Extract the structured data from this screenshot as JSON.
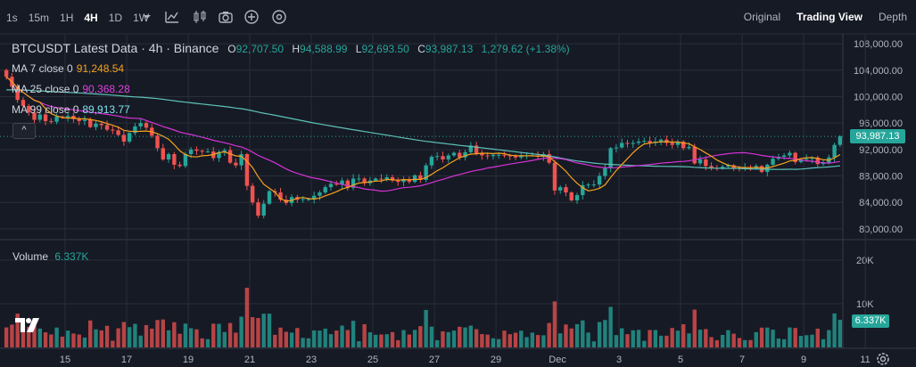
{
  "toolbar": {
    "intervals": [
      "1s",
      "15m",
      "1H",
      "4H",
      "1D",
      "1W"
    ],
    "active_interval": "4H",
    "icons": [
      "chevron-down-icon",
      "indicators-icon",
      "candle-type-icon",
      "camera-icon",
      "add-circle-icon",
      "settings-circle-icon"
    ],
    "view_tabs": [
      "Original",
      "Trading View",
      "Depth"
    ],
    "active_view": "Trading View"
  },
  "legend": {
    "title": "BTCUSDT Latest Data · 4h · Binance",
    "o_label": "O",
    "o": "92,707.50",
    "h_label": "H",
    "h": "94,588.99",
    "l_label": "L",
    "l": "92,693.50",
    "c_label": "C",
    "c": "93,987.13",
    "change": "1,279.62 (+1.38%)",
    "ma7_label": "MA 7 close 0",
    "ma7_value": "91,248.54",
    "ma7_color": "#f7a21b",
    "ma25_label": "MA 25 close 0",
    "ma25_value": "90,368.28",
    "ma25_color": "#d633d6",
    "ma99_label": "MA 99 close 0",
    "ma99_value": "89,913.77",
    "ma99_color": "#7fe3f0"
  },
  "collapse_symbol": "^",
  "last_price_tag": "93,987.13",
  "volume": {
    "label": "Volume",
    "value": "6.337K",
    "tag": "6.337K"
  },
  "colors": {
    "up": "#26a69a",
    "down": "#ef5350",
    "grid": "#2a2e39",
    "text": "#b2b5be"
  },
  "chart_data": {
    "type": "candlestick",
    "price_axis_ticks": [
      "108,000.00",
      "104,000.00",
      "100,000.00",
      "96,000.00",
      "92,000.00",
      "88,000.00",
      "84,000.00",
      "80,000.00"
    ],
    "price_axis_values": [
      108000,
      104000,
      100000,
      96000,
      92000,
      88000,
      84000,
      80000
    ],
    "ylim": [
      78500,
      109500
    ],
    "volume_axis_ticks": [
      "20K",
      "10K"
    ],
    "volume_axis_values": [
      20000,
      10000
    ],
    "volume_ylim": [
      0,
      24500
    ],
    "x_tick_labels": [
      "15",
      "17",
      "19",
      "21",
      "23",
      "25",
      "27",
      "29",
      "Dec",
      "3",
      "5",
      "7",
      "9",
      "11"
    ],
    "x_tick_index": [
      10.5,
      21.5,
      32.5,
      43.5,
      54.5,
      65.5,
      76.5,
      87.5,
      98.5,
      109.5,
      120.5,
      131.5,
      142.5,
      153.5
    ],
    "last_close": 93987.13,
    "last_volume": 6337,
    "candles_close": [
      103000,
      101500,
      99500,
      98600,
      97600,
      96500,
      97300,
      96300,
      96200,
      97000,
      96900,
      97100,
      96600,
      96300,
      96500,
      95400,
      95900,
      95700,
      95000,
      94900,
      94200,
      93200,
      94500,
      95500,
      96000,
      95300,
      94100,
      92200,
      90500,
      91300,
      89700,
      89500,
      91300,
      92000,
      91800,
      91700,
      91700,
      90700,
      91600,
      91900,
      90000,
      89600,
      91300,
      86500,
      84000,
      82000,
      83800,
      85700,
      85500,
      84400,
      83900,
      84800,
      84400,
      84500,
      84500,
      85000,
      85500,
      86300,
      86800,
      86700,
      87300,
      86200,
      87600,
      87600,
      86900,
      87300,
      87600,
      87500,
      87800,
      87300,
      87100,
      87500,
      87100,
      88100,
      87400,
      89600,
      90900,
      91000,
      90500,
      91100,
      91500,
      90800,
      91600,
      92600,
      91400,
      91100,
      91000,
      91200,
      91200,
      91100,
      91000,
      90800,
      91000,
      91100,
      91100,
      90900,
      91300,
      90000,
      85800,
      86300,
      85500,
      84300,
      85100,
      86600,
      86700,
      86700,
      88000,
      89200,
      92200,
      92300,
      93000,
      92900,
      93000,
      93200,
      93300,
      93000,
      93200,
      93500,
      93000,
      92700,
      93200,
      92200,
      92400,
      89900,
      90500,
      89500,
      89200,
      89100,
      89400,
      89600,
      89200,
      89100,
      89300,
      89100,
      89500,
      88600,
      89700,
      90600,
      90900,
      91100,
      91500,
      90100,
      90500,
      90600,
      90800,
      89800,
      90000,
      90800,
      92700,
      93987
    ]
  }
}
